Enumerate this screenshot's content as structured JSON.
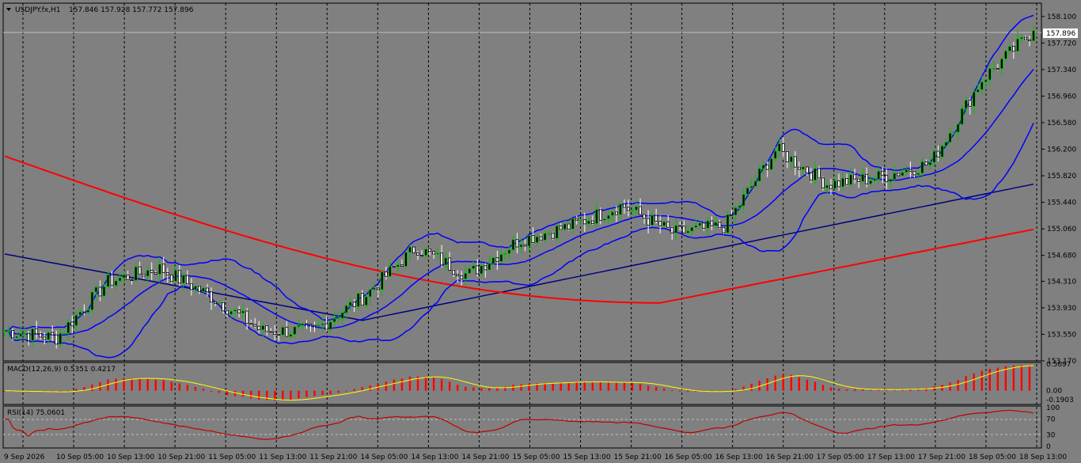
{
  "window_title": "USDJPY.fx,H1",
  "ohlc_text": "157.846 157.928 157.772 157.896",
  "current_price": "157.896",
  "price_axis_ticks": [
    "158.100",
    "157.720",
    "157.340",
    "156.960",
    "156.580",
    "156.200",
    "155.820",
    "155.440",
    "155.060",
    "154.680",
    "154.310",
    "153.930",
    "153.550",
    "153.170"
  ],
  "time_axis_labels": [
    "9 Sep 2026",
    "10 Sep 05:00",
    "10 Sep 13:00",
    "10 Sep 21:00",
    "11 Sep 05:00",
    "11 Sep 13:00",
    "11 Sep 21:00",
    "14 Sep 05:00",
    "14 Sep 13:00",
    "14 Sep 21:00",
    "15 Sep 05:00",
    "15 Sep 13:00",
    "15 Sep 21:00",
    "16 Sep 05:00",
    "16 Sep 13:00",
    "16 Sep 21:00",
    "17 Sep 05:00",
    "17 Sep 13:00",
    "17 Sep 21:00",
    "18 Sep 05:00",
    "18 Sep 13:00"
  ],
  "macd_panel": {
    "title": "MACD(12,26,9) 0.5351 0.4217",
    "axis_ticks": [
      "0.5697",
      "0.00",
      "-0.1903"
    ]
  },
  "rsi_panel": {
    "title": "RSI(14) 75.0601",
    "axis_ticks": [
      "100",
      "70",
      "30",
      "0"
    ]
  },
  "colors": {
    "background": "#808080",
    "bull_candle": "#00c000",
    "bear_candle": "#ffffff",
    "bollinger": "#0000ff",
    "ma_red": "#ff0000",
    "ma_navy": "#000080",
    "macd_hist": "#ff0000",
    "macd_signal": "#ffff00",
    "rsi_line": "#c00000"
  },
  "chart_data": [
    {
      "type": "line",
      "symbol": "USDJPY.fx",
      "timeframe": "H1",
      "ylim": [
        153.17,
        158.29
      ],
      "last_ohlc": {
        "open": 157.846,
        "high": 157.928,
        "low": 157.772,
        "close": 157.896
      },
      "close_samples": [
        [
          "9 Sep 2026",
          153.6
        ],
        [
          "10 Sep 05:00",
          153.5
        ],
        [
          "10 Sep 13:00",
          154.3
        ],
        [
          "10 Sep 21:00",
          154.5
        ],
        [
          "11 Sep 05:00",
          154.1
        ],
        [
          "11 Sep 13:00",
          153.6
        ],
        [
          "11 Sep 21:00",
          153.6
        ],
        [
          "14 Sep 05:00",
          154.1
        ],
        [
          "14 Sep 13:00",
          154.8
        ],
        [
          "14 Sep 21:00",
          154.4
        ],
        [
          "15 Sep 05:00",
          154.9
        ],
        [
          "15 Sep 13:00",
          155.1
        ],
        [
          "15 Sep 21:00",
          155.4
        ],
        [
          "16 Sep 05:00",
          155.0
        ],
        [
          "16 Sep 13:00",
          155.1
        ],
        [
          "16 Sep 21:00",
          156.2
        ],
        [
          "17 Sep 05:00",
          155.7
        ],
        [
          "17 Sep 13:00",
          155.8
        ],
        [
          "17 Sep 21:00",
          156.0
        ],
        [
          "18 Sep 05:00",
          157.2
        ],
        [
          "18 Sep 13:00",
          157.896
        ]
      ]
    },
    {
      "type": "bar",
      "indicator": "MACD(12,26,9)",
      "main": 0.5351,
      "signal": 0.4217,
      "ylim": [
        -0.1903,
        0.5697
      ]
    },
    {
      "type": "line",
      "indicator": "RSI(14)",
      "value": 75.0601,
      "levels": [
        70,
        30
      ],
      "ylim": [
        0,
        100
      ]
    }
  ]
}
